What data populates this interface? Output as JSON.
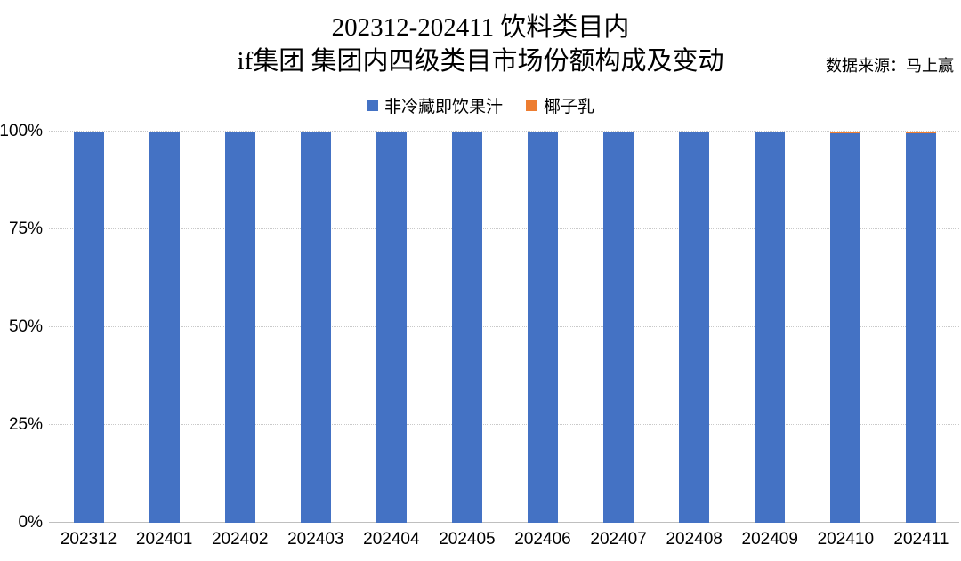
{
  "title": {
    "line1": "202312-202411 饮料类目内",
    "line2": "if集团 集团内四级类目市场份额构成及变动"
  },
  "source_label": "数据来源：马上赢",
  "legend": [
    {
      "label": "非冷藏即饮果汁",
      "color": "#4472C4"
    },
    {
      "label": "椰子乳",
      "color": "#ED7D31"
    }
  ],
  "chart_data": {
    "type": "bar",
    "stacked": true,
    "unit": "%",
    "title": "202312-202411 饮料类目内 if集团 集团内四级类目市场份额构成及变动",
    "xlabel": "",
    "ylabel": "",
    "ylim": [
      0,
      100
    ],
    "grid": true,
    "legend_position": "top",
    "categories": [
      "202312",
      "202401",
      "202402",
      "202403",
      "202404",
      "202405",
      "202406",
      "202407",
      "202408",
      "202409",
      "202410",
      "202411"
    ],
    "series": [
      {
        "name": "非冷藏即饮果汁",
        "color": "#4472C4",
        "values": [
          100,
          100,
          100,
          100,
          100,
          100,
          100,
          100,
          100,
          100,
          99.5,
          99.5
        ]
      },
      {
        "name": "椰子乳",
        "color": "#ED7D31",
        "values": [
          0,
          0,
          0,
          0,
          0,
          0,
          0,
          0,
          0,
          0,
          0.5,
          0.5
        ]
      }
    ],
    "yticks": [
      {
        "label": "0%",
        "value": 0
      },
      {
        "label": "25%",
        "value": 25
      },
      {
        "label": "50%",
        "value": 50
      },
      {
        "label": "75%",
        "value": 75
      },
      {
        "label": "100%",
        "value": 100
      }
    ]
  }
}
